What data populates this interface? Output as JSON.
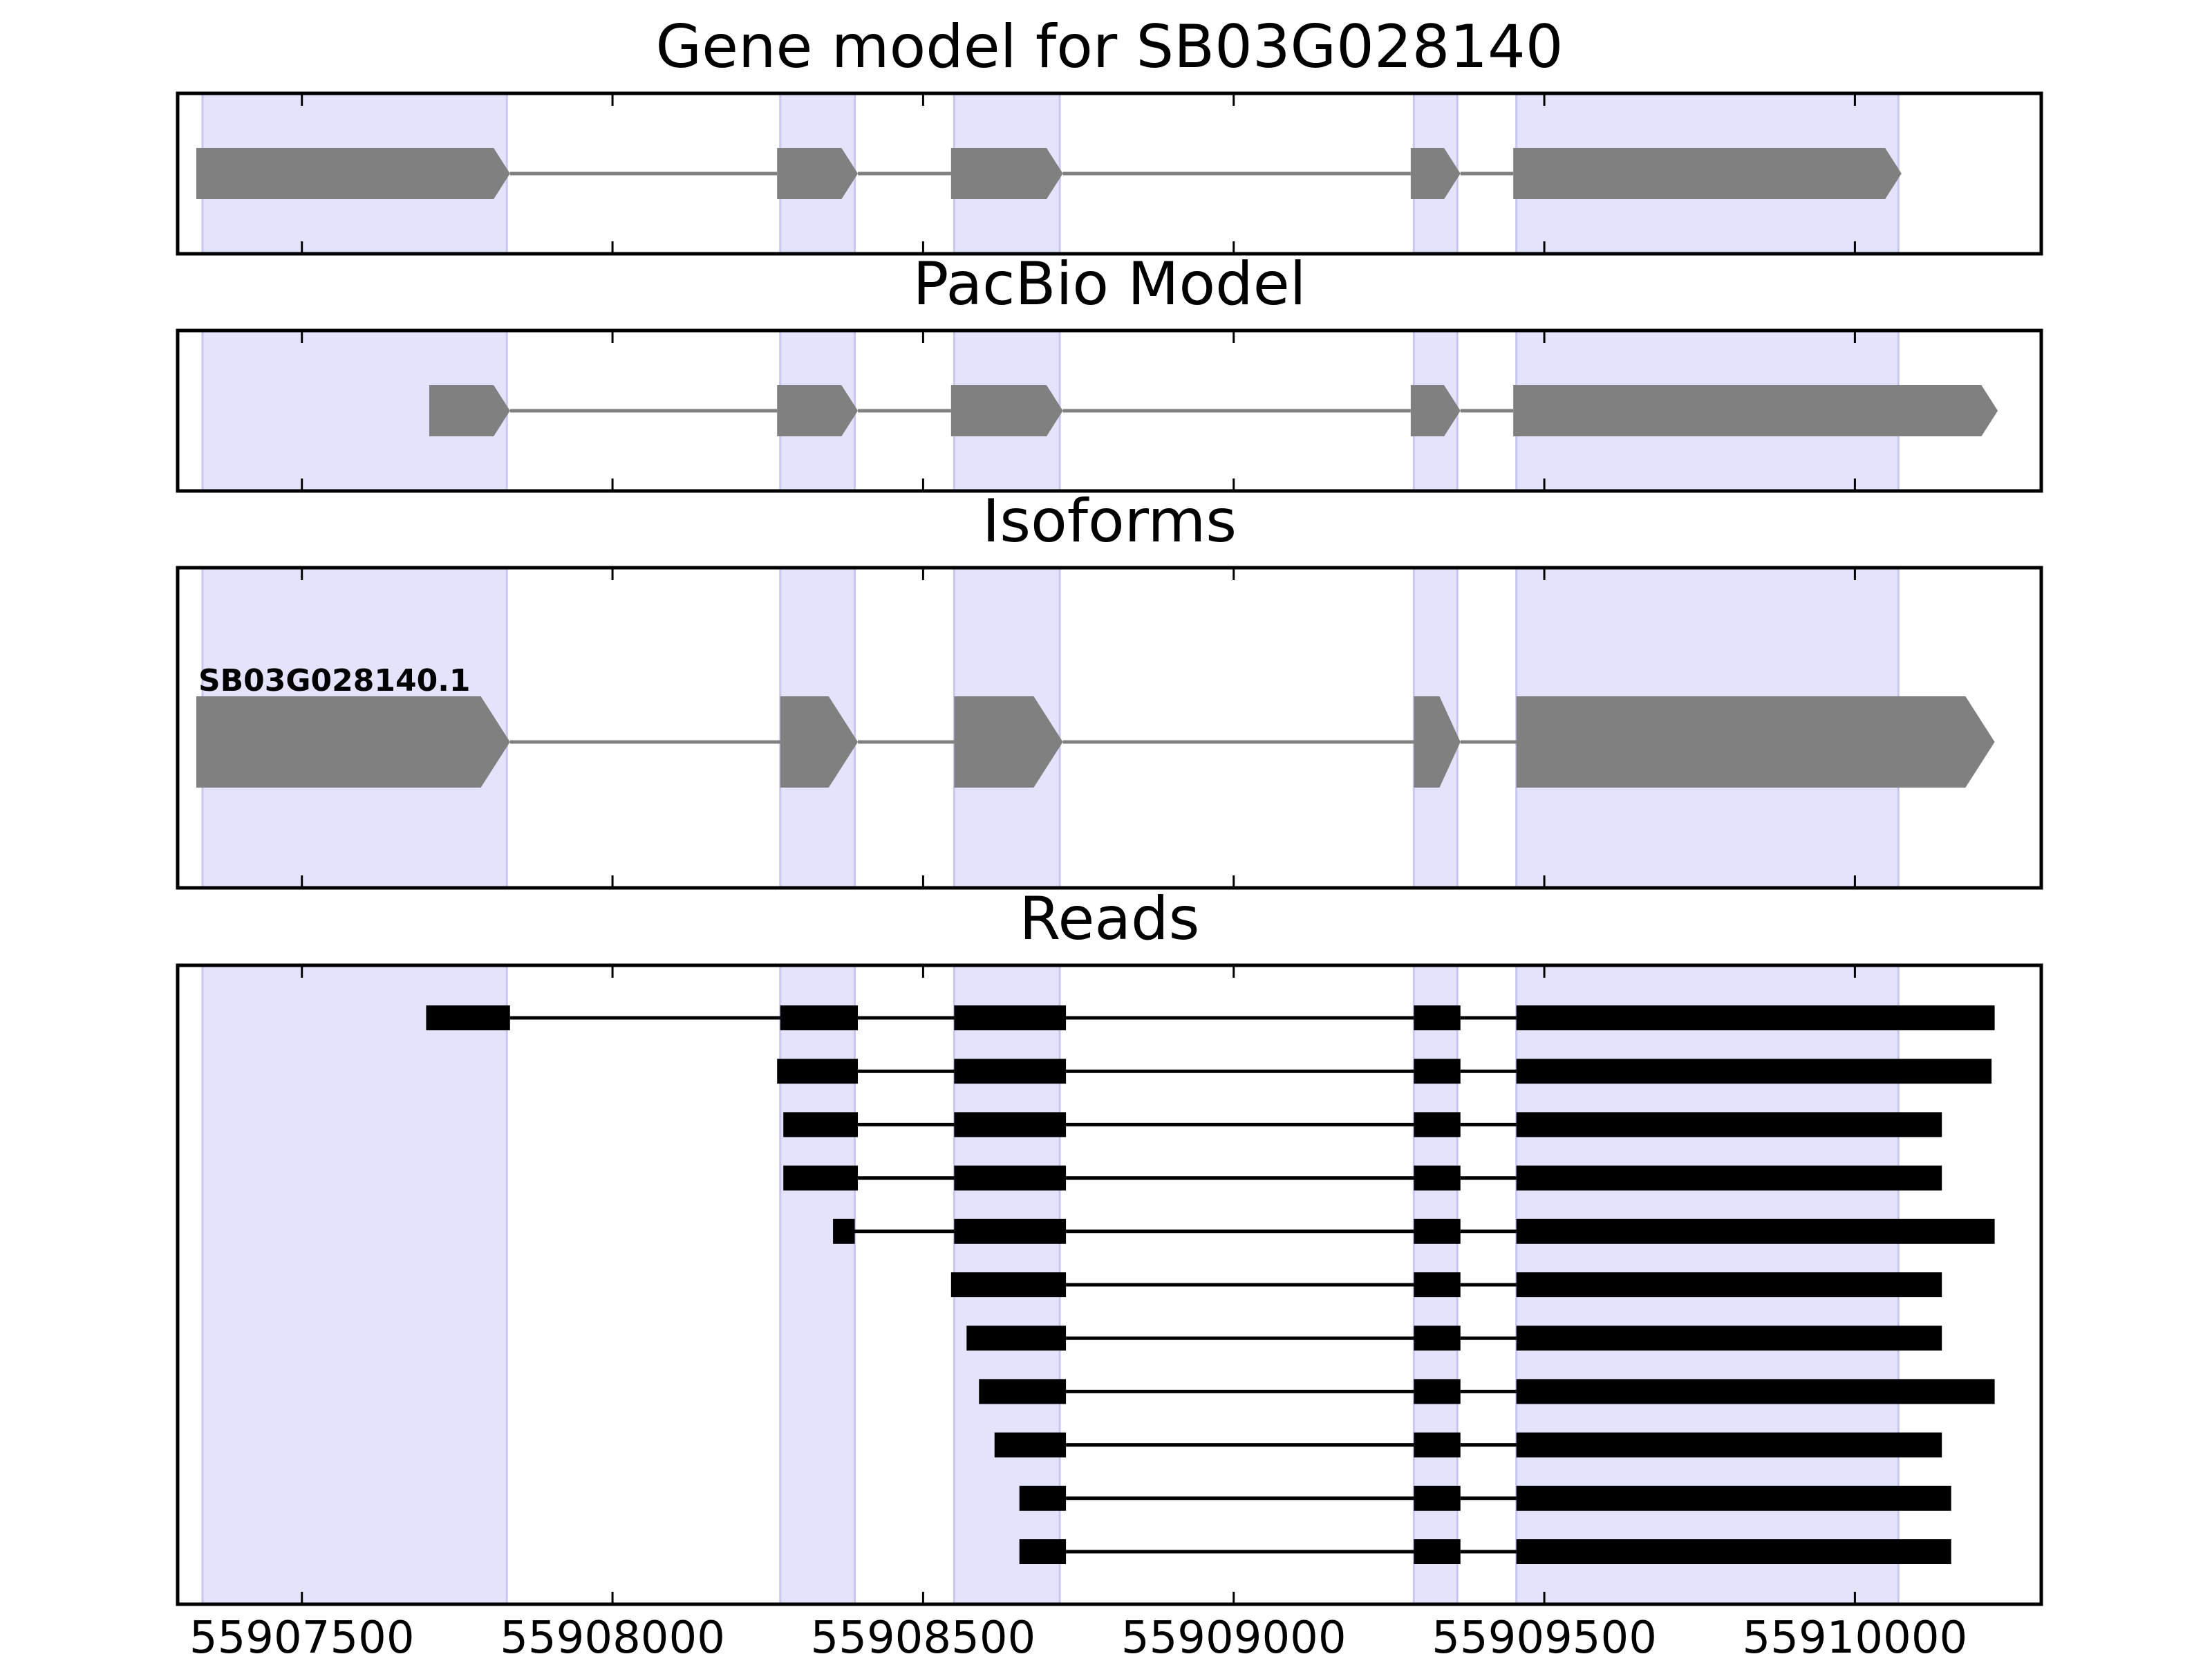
{
  "chart_data": {
    "type": "gene-track",
    "xlim": [
      55907300,
      55910300
    ],
    "x_ticks": [
      55907500,
      55908000,
      55908500,
      55909000,
      55909500,
      55910000
    ],
    "x_tick_labels": [
      "55907500",
      "55908000",
      "55908500",
      "55909000",
      "55909500",
      "55910000"
    ],
    "highlight_color": "#e3e3fb",
    "feature_color": "#808080",
    "read_color": "#000000",
    "exon_regions": [
      [
        55907340,
        55907830
      ],
      [
        55908270,
        55908390
      ],
      [
        55908550,
        55908720
      ],
      [
        55909290,
        55909360
      ],
      [
        55909455,
        55910070
      ]
    ],
    "panels": [
      {
        "name": "gene-model",
        "title": "Gene model for SB03G028140",
        "kind": "model",
        "models": [
          {
            "label": "",
            "exons": [
              [
                55907330,
                55907835
              ],
              [
                55908265,
                55908395
              ],
              [
                55908545,
                55908725
              ],
              [
                55909285,
                55909365
              ],
              [
                55909450,
                55910075
              ]
            ]
          }
        ]
      },
      {
        "name": "pacbio-model",
        "title": "PacBio Model",
        "kind": "model",
        "models": [
          {
            "label": "",
            "exons": [
              [
                55907705,
                55907835
              ],
              [
                55908265,
                55908395
              ],
              [
                55908545,
                55908725
              ],
              [
                55909285,
                55909365
              ],
              [
                55909450,
                55910230
              ]
            ]
          }
        ]
      },
      {
        "name": "isoforms",
        "title": "Isoforms",
        "kind": "model",
        "models": [
          {
            "label": "SB03G028140.1",
            "exons": [
              [
                55907330,
                55907835
              ],
              [
                55908270,
                55908395
              ],
              [
                55908550,
                55908725
              ],
              [
                55909290,
                55909365
              ],
              [
                55909455,
                55910225
              ]
            ]
          }
        ]
      },
      {
        "name": "reads",
        "title": "Reads",
        "kind": "reads",
        "reads": [
          [
            [
              55907700,
              55907835
            ],
            [
              55908270,
              55908395
            ],
            [
              55908550,
              55908730
            ],
            [
              55909290,
              55909365
            ],
            [
              55909455,
              55910225
            ]
          ],
          [
            [
              55908265,
              55908395
            ],
            [
              55908550,
              55908730
            ],
            [
              55909290,
              55909365
            ],
            [
              55909455,
              55910220
            ]
          ],
          [
            [
              55908275,
              55908395
            ],
            [
              55908550,
              55908730
            ],
            [
              55909290,
              55909365
            ],
            [
              55909455,
              55910140
            ]
          ],
          [
            [
              55908275,
              55908395
            ],
            [
              55908550,
              55908730
            ],
            [
              55909290,
              55909365
            ],
            [
              55909455,
              55910140
            ]
          ],
          [
            [
              55908355,
              55908390
            ],
            [
              55908550,
              55908730
            ],
            [
              55909290,
              55909365
            ],
            [
              55909455,
              55910225
            ]
          ],
          [
            [
              55908545,
              55908730
            ],
            [
              55909290,
              55909365
            ],
            [
              55909455,
              55910140
            ]
          ],
          [
            [
              55908570,
              55908730
            ],
            [
              55909290,
              55909365
            ],
            [
              55909455,
              55910140
            ]
          ],
          [
            [
              55908590,
              55908730
            ],
            [
              55909290,
              55909365
            ],
            [
              55909455,
              55910225
            ]
          ],
          [
            [
              55908615,
              55908730
            ],
            [
              55909290,
              55909365
            ],
            [
              55909455,
              55910140
            ]
          ],
          [
            [
              55908655,
              55908730
            ],
            [
              55909290,
              55909365
            ],
            [
              55909455,
              55910155
            ]
          ],
          [
            [
              55908655,
              55908730
            ],
            [
              55909290,
              55909365
            ],
            [
              55909455,
              55910155
            ]
          ]
        ]
      }
    ]
  }
}
